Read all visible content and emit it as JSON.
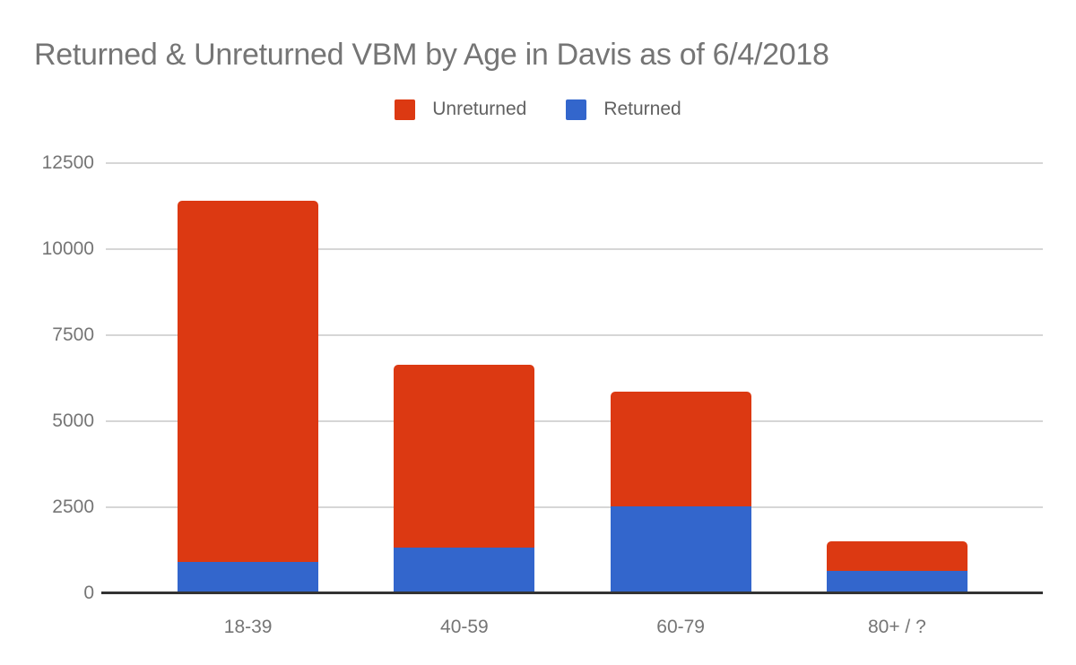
{
  "title": "Returned & Unreturned VBM by Age in Davis as of 6/4/2018",
  "legend": {
    "items": [
      {
        "label": "Unreturned",
        "color": "#dc3912"
      },
      {
        "label": "Returned",
        "color": "#3366cc"
      }
    ]
  },
  "colors": {
    "unreturned": "#dc3912",
    "returned": "#3366cc",
    "title_text": "#757575",
    "axis_text": "#757575",
    "legend_text": "#616161",
    "gridline": "#d6d6d6",
    "baseline": "#333333",
    "background": "#ffffff"
  },
  "chart_data": {
    "type": "bar",
    "stacked": true,
    "title": "Returned & Unreturned VBM by Age in Davis as of 6/4/2018",
    "categories": [
      "18-39",
      "40-59",
      "60-79",
      "80+ / ?"
    ],
    "series": [
      {
        "name": "Unreturned",
        "color": "#dc3912",
        "values": [
          10480,
          5300,
          3330,
          850
        ]
      },
      {
        "name": "Returned",
        "color": "#3366cc",
        "values": [
          925,
          1340,
          2540,
          665
        ]
      }
    ],
    "stack_totals": [
      11405,
      6640,
      5870,
      1515
    ],
    "stack_order_bottom_to_top": [
      "Returned",
      "Unreturned"
    ],
    "xlabel": "",
    "ylabel": "",
    "y_ticks": [
      0,
      2500,
      5000,
      7500,
      10000,
      12500
    ],
    "y_tick_labels": [
      "0",
      "2500",
      "5000",
      "7500",
      "10000",
      "12500"
    ],
    "ylim": [
      0,
      12500
    ],
    "grid": true,
    "legend_position": "top"
  }
}
